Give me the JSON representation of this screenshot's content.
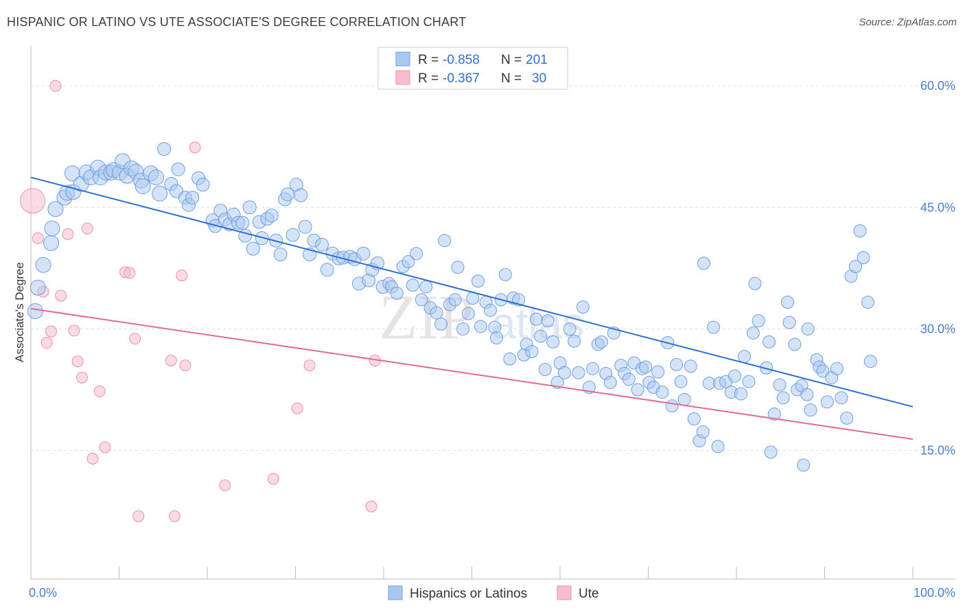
{
  "header": {
    "title": "HISPANIC OR LATINO VS UTE ASSOCIATE'S DEGREE CORRELATION CHART",
    "source": "Source: ZipAtlas.com"
  },
  "legend_top": {
    "rows": [
      {
        "r_label": "R = ",
        "r_value": "-0.858",
        "n_label": "N = ",
        "n_value": "201"
      },
      {
        "r_label": "R = ",
        "r_value": "-0.367",
        "n_label": "N = ",
        "n_value": "30"
      }
    ]
  },
  "watermark": {
    "zip": "ZIP",
    "atlas": "atlas"
  },
  "colors": {
    "blue_fill": "#a9c8f0",
    "blue_stroke": "#6f9fe0",
    "blue_line": "#2e6fcf",
    "pink_fill": "#f6bdd0",
    "pink_stroke": "#ec8fb0",
    "pink_line": "#e06a94",
    "grid": "#dddddd",
    "axis": "#bbbbbb",
    "tick_label": "#4a7fd0"
  },
  "chart_data": {
    "type": "scatter",
    "title": "HISPANIC OR LATINO VS UTE ASSOCIATE'S DEGREE CORRELATION CHART",
    "xlabel": "",
    "ylabel": "Associate's Degree",
    "xlim": [
      0,
      100
    ],
    "ylim": [
      1,
      65
    ],
    "x_tick_labels": [
      "0.0%",
      "100.0%"
    ],
    "y_ticks": [
      15,
      30,
      45,
      60
    ],
    "y_tick_labels": [
      "15.0%",
      "30.0%",
      "45.0%",
      "60.0%"
    ],
    "grid": true,
    "legend": "top-center",
    "series": [
      {
        "name": "Hispanics or Latinos",
        "color": "#6f9fe0",
        "trend": {
          "x": [
            0,
            100
          ],
          "y": [
            48.7,
            20.4
          ]
        },
        "points": [
          [
            0.5,
            32.2
          ],
          [
            0.8,
            35.1
          ],
          [
            1.4,
            37.9
          ],
          [
            2.3,
            40.6
          ],
          [
            2.4,
            42.4
          ],
          [
            2.8,
            44.8
          ],
          [
            3.8,
            46.2
          ],
          [
            4.1,
            46.8
          ],
          [
            4.8,
            46.9
          ],
          [
            4.7,
            49.2
          ],
          [
            5.7,
            47.9
          ],
          [
            6.3,
            49.3
          ],
          [
            6.8,
            48.7
          ],
          [
            7.6,
            49.9
          ],
          [
            7.9,
            48.7
          ],
          [
            8.5,
            49.3
          ],
          [
            9.1,
            49.3
          ],
          [
            9.4,
            49.6
          ],
          [
            10.1,
            49.3
          ],
          [
            10.4,
            50.7
          ],
          [
            10.9,
            48.9
          ],
          [
            11.4,
            49.8
          ],
          [
            11.9,
            49.4
          ],
          [
            12.5,
            48.3
          ],
          [
            12.7,
            47.6
          ],
          [
            13.6,
            49.2
          ],
          [
            14.2,
            48.7
          ],
          [
            14.6,
            46.7
          ],
          [
            15.1,
            52.2
          ],
          [
            15.9,
            47.9
          ],
          [
            16.5,
            47.0
          ],
          [
            16.7,
            49.7
          ],
          [
            17.5,
            46.2
          ],
          [
            17.9,
            45.3
          ],
          [
            18.3,
            46.2
          ],
          [
            19.0,
            48.6
          ],
          [
            19.5,
            47.8
          ],
          [
            20.6,
            43.4
          ],
          [
            20.9,
            42.7
          ],
          [
            21.5,
            44.6
          ],
          [
            22.0,
            43.5
          ],
          [
            22.5,
            42.9
          ],
          [
            23.0,
            44.1
          ],
          [
            23.5,
            43.1
          ],
          [
            24.0,
            43.1
          ],
          [
            24.3,
            41.5
          ],
          [
            24.8,
            45.0
          ],
          [
            25.2,
            39.9
          ],
          [
            25.9,
            43.2
          ],
          [
            26.2,
            41.2
          ],
          [
            26.8,
            43.6
          ],
          [
            27.3,
            44.0
          ],
          [
            27.8,
            40.9
          ],
          [
            28.3,
            39.2
          ],
          [
            28.8,
            46.0
          ],
          [
            29.1,
            46.6
          ],
          [
            29.7,
            41.6
          ],
          [
            30.1,
            47.8
          ],
          [
            30.6,
            46.5
          ],
          [
            31.1,
            42.6
          ],
          [
            31.6,
            39.2
          ],
          [
            32.1,
            40.9
          ],
          [
            33.0,
            40.4
          ],
          [
            33.6,
            37.3
          ],
          [
            34.2,
            39.3
          ],
          [
            34.9,
            38.7
          ],
          [
            35.4,
            38.8
          ],
          [
            36.2,
            38.9
          ],
          [
            36.7,
            38.6
          ],
          [
            37.2,
            35.6
          ],
          [
            37.7,
            39.3
          ],
          [
            38.3,
            36.0
          ],
          [
            38.7,
            37.3
          ],
          [
            39.3,
            38.1
          ],
          [
            39.9,
            35.2
          ],
          [
            40.6,
            35.6
          ],
          [
            40.9,
            35.2
          ],
          [
            41.5,
            34.4
          ],
          [
            42.2,
            37.7
          ],
          [
            42.8,
            38.3
          ],
          [
            43.3,
            35.4
          ],
          [
            43.7,
            39.3
          ],
          [
            44.3,
            33.6
          ],
          [
            44.8,
            35.2
          ],
          [
            45.3,
            32.6
          ],
          [
            46.0,
            32.0
          ],
          [
            46.5,
            30.6
          ],
          [
            46.9,
            40.9
          ],
          [
            47.5,
            33.0
          ],
          [
            48.1,
            33.6
          ],
          [
            48.4,
            37.6
          ],
          [
            49.0,
            30.0
          ],
          [
            49.6,
            31.9
          ],
          [
            50.1,
            33.8
          ],
          [
            50.7,
            35.9
          ],
          [
            51.0,
            30.3
          ],
          [
            51.6,
            33.3
          ],
          [
            52.1,
            32.3
          ],
          [
            52.6,
            30.2
          ],
          [
            52.8,
            28.9
          ],
          [
            53.3,
            33.6
          ],
          [
            53.8,
            36.7
          ],
          [
            54.3,
            26.3
          ],
          [
            54.7,
            33.8
          ],
          [
            55.3,
            33.6
          ],
          [
            55.9,
            26.8
          ],
          [
            56.2,
            28.1
          ],
          [
            56.8,
            27.2
          ],
          [
            57.3,
            31.2
          ],
          [
            57.8,
            29.1
          ],
          [
            58.3,
            25.0
          ],
          [
            58.6,
            31.0
          ],
          [
            59.2,
            28.4
          ],
          [
            59.7,
            23.4
          ],
          [
            60.0,
            25.8
          ],
          [
            60.5,
            24.6
          ],
          [
            61.1,
            30.0
          ],
          [
            61.6,
            28.5
          ],
          [
            62.1,
            24.6
          ],
          [
            62.6,
            32.7
          ],
          [
            63.3,
            22.8
          ],
          [
            63.7,
            25.1
          ],
          [
            64.3,
            28.1
          ],
          [
            64.7,
            28.4
          ],
          [
            65.2,
            24.5
          ],
          [
            65.7,
            23.4
          ],
          [
            66.1,
            29.5
          ],
          [
            66.9,
            25.5
          ],
          [
            67.3,
            24.5
          ],
          [
            67.8,
            23.8
          ],
          [
            68.4,
            25.8
          ],
          [
            68.8,
            22.5
          ],
          [
            69.3,
            25.1
          ],
          [
            69.7,
            25.3
          ],
          [
            70.1,
            23.4
          ],
          [
            70.6,
            22.8
          ],
          [
            71.1,
            24.7
          ],
          [
            71.6,
            22.2
          ],
          [
            72.2,
            28.3
          ],
          [
            72.7,
            20.5
          ],
          [
            73.2,
            25.6
          ],
          [
            73.7,
            23.5
          ],
          [
            74.1,
            21.3
          ],
          [
            74.8,
            25.4
          ],
          [
            75.2,
            18.9
          ],
          [
            75.8,
            16.2
          ],
          [
            76.2,
            17.3
          ],
          [
            76.9,
            23.3
          ],
          [
            77.4,
            30.2
          ],
          [
            77.9,
            15.5
          ],
          [
            78.1,
            23.3
          ],
          [
            78.8,
            23.5
          ],
          [
            79.4,
            22.2
          ],
          [
            79.8,
            24.2
          ],
          [
            80.5,
            22.0
          ],
          [
            80.9,
            26.6
          ],
          [
            81.4,
            23.5
          ],
          [
            81.9,
            29.5
          ],
          [
            82.5,
            31.0
          ],
          [
            83.4,
            25.2
          ],
          [
            83.7,
            28.4
          ],
          [
            84.3,
            19.5
          ],
          [
            84.9,
            23.1
          ],
          [
            85.3,
            21.5
          ],
          [
            86.0,
            30.8
          ],
          [
            86.6,
            28.1
          ],
          [
            86.9,
            22.5
          ],
          [
            87.4,
            23.0
          ],
          [
            88.0,
            21.9
          ],
          [
            88.4,
            20.0
          ],
          [
            89.1,
            26.2
          ],
          [
            89.4,
            25.3
          ],
          [
            89.8,
            24.8
          ],
          [
            90.3,
            21.0
          ],
          [
            90.8,
            24.0
          ],
          [
            91.4,
            25.1
          ],
          [
            91.9,
            21.5
          ],
          [
            92.5,
            19.0
          ],
          [
            93.0,
            36.5
          ],
          [
            93.5,
            37.7
          ],
          [
            94.0,
            42.1
          ],
          [
            94.4,
            38.8
          ],
          [
            94.9,
            33.3
          ],
          [
            95.2,
            26.0
          ],
          [
            76.3,
            38.1
          ],
          [
            83.9,
            14.8
          ],
          [
            87.6,
            13.2
          ],
          [
            82.1,
            35.6
          ],
          [
            85.8,
            33.3
          ],
          [
            88.1,
            30.0
          ]
        ]
      },
      {
        "name": "Ute",
        "color": "#ec8fb0",
        "trend": {
          "x": [
            0,
            100
          ],
          "y": [
            32.5,
            16.4
          ]
        },
        "points": [
          [
            0.2,
            45.8
          ],
          [
            0.8,
            41.2
          ],
          [
            1.4,
            34.6
          ],
          [
            1.8,
            28.3
          ],
          [
            2.3,
            29.7
          ],
          [
            2.8,
            60.0
          ],
          [
            3.4,
            34.1
          ],
          [
            4.2,
            41.7
          ],
          [
            4.9,
            29.8
          ],
          [
            5.3,
            26.0
          ],
          [
            5.8,
            24.0
          ],
          [
            6.4,
            42.4
          ],
          [
            7.0,
            14.0
          ],
          [
            7.8,
            22.3
          ],
          [
            8.4,
            15.4
          ],
          [
            10.7,
            37.0
          ],
          [
            11.2,
            36.9
          ],
          [
            11.8,
            28.8
          ],
          [
            12.2,
            6.9
          ],
          [
            15.9,
            26.1
          ],
          [
            16.3,
            6.9
          ],
          [
            17.1,
            36.6
          ],
          [
            17.5,
            25.5
          ],
          [
            18.6,
            52.4
          ],
          [
            22.0,
            10.7
          ],
          [
            27.5,
            11.5
          ],
          [
            30.2,
            20.2
          ],
          [
            31.6,
            25.5
          ],
          [
            38.6,
            8.1
          ],
          [
            39.0,
            26.1
          ]
        ]
      }
    ]
  },
  "bottom_legend": {
    "items": [
      {
        "label": "Hispanics or Latinos"
      },
      {
        "label": "Ute"
      }
    ]
  }
}
